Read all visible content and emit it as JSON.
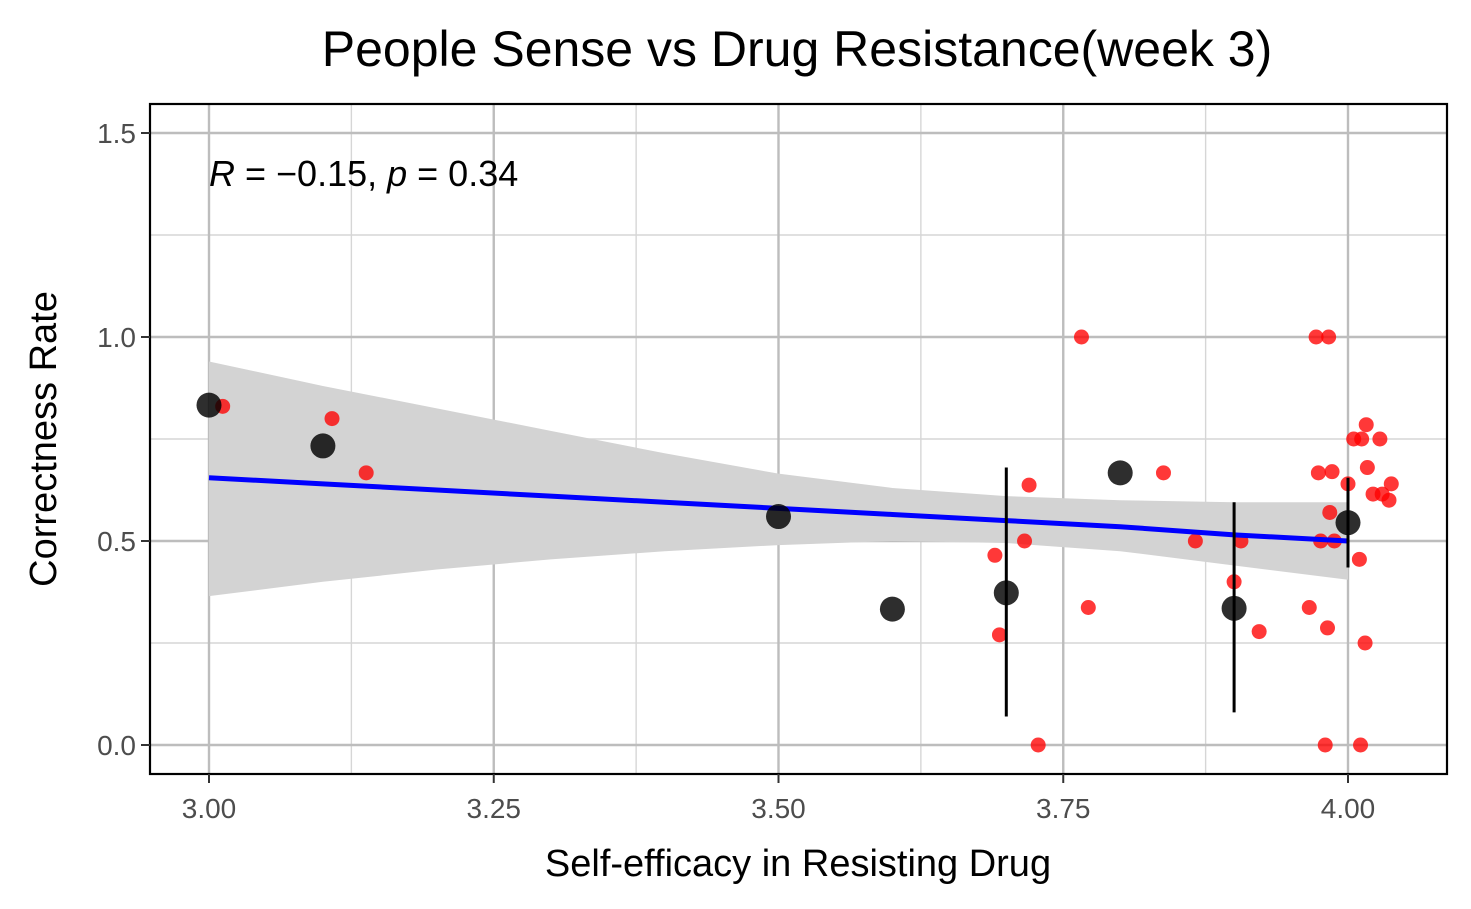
{
  "chart_data": {
    "type": "scatter",
    "title": "People Sense vs Drug Resistance(week 3)",
    "xlabel": "Self-efficacy in Resisting Drug",
    "ylabel": "Correctness Rate",
    "xlim": [
      2.95,
      4.09
    ],
    "ylim": [
      -0.07,
      1.57
    ],
    "x_ticks": [
      {
        "value": 3.0,
        "label": "3.00"
      },
      {
        "value": 3.25,
        "label": "3.25"
      },
      {
        "value": 3.5,
        "label": "3.50"
      },
      {
        "value": 3.75,
        "label": "3.75"
      },
      {
        "value": 4.0,
        "label": "4.00"
      }
    ],
    "y_ticks": [
      {
        "value": 0.0,
        "label": "0.0"
      },
      {
        "value": 0.5,
        "label": "0.5"
      },
      {
        "value": 1.0,
        "label": "1.0"
      },
      {
        "value": 1.5,
        "label": "1.5"
      }
    ],
    "grid": true,
    "annotation": {
      "r_symbol": "R",
      "r_text": " = −0.15, ",
      "p_symbol": "p",
      "p_text": " = 0.34"
    },
    "regression": {
      "x": [
        3.0,
        3.1,
        3.2,
        3.3,
        3.4,
        3.5,
        3.6,
        3.7,
        3.8,
        3.9,
        4.0
      ],
      "y": [
        0.655,
        0.64,
        0.625,
        0.61,
        0.595,
        0.58,
        0.565,
        0.55,
        0.535,
        0.515,
        0.5
      ],
      "lower": [
        0.365,
        0.4,
        0.43,
        0.455,
        0.475,
        0.49,
        0.5,
        0.495,
        0.475,
        0.44,
        0.405
      ],
      "upper": [
        0.94,
        0.88,
        0.825,
        0.77,
        0.715,
        0.665,
        0.63,
        0.61,
        0.6,
        0.595,
        0.595
      ],
      "line_color": "#0000ff",
      "band_color": "#d3d3d3"
    },
    "jitter_points": {
      "color": "#ff0000",
      "points": [
        [
          3.012,
          0.83
        ],
        [
          3.108,
          0.8
        ],
        [
          3.138,
          0.667
        ],
        [
          3.69,
          0.465
        ],
        [
          3.694,
          0.27
        ],
        [
          3.716,
          0.5
        ],
        [
          3.72,
          0.637
        ],
        [
          3.728,
          0.0
        ],
        [
          3.766,
          1.0
        ],
        [
          3.772,
          0.337
        ],
        [
          3.838,
          0.667
        ],
        [
          3.866,
          0.5
        ],
        [
          3.9,
          0.4
        ],
        [
          3.906,
          0.5
        ],
        [
          3.922,
          0.278
        ],
        [
          3.966,
          0.337
        ],
        [
          3.972,
          1.0
        ],
        [
          3.974,
          0.667
        ],
        [
          3.976,
          0.5
        ],
        [
          3.98,
          0.0
        ],
        [
          3.982,
          0.287
        ],
        [
          3.983,
          1.0
        ],
        [
          3.984,
          0.57
        ],
        [
          3.986,
          0.67
        ],
        [
          3.988,
          0.5
        ],
        [
          4.0,
          0.64
        ],
        [
          4.005,
          0.75
        ],
        [
          4.01,
          0.455
        ],
        [
          4.011,
          0.0
        ],
        [
          4.012,
          0.75
        ],
        [
          4.015,
          0.25
        ],
        [
          4.016,
          0.785
        ],
        [
          4.017,
          0.68
        ],
        [
          4.022,
          0.615
        ],
        [
          4.028,
          0.75
        ],
        [
          4.03,
          0.615
        ],
        [
          4.036,
          0.6
        ],
        [
          4.038,
          0.64
        ]
      ]
    },
    "mean_points": {
      "color": "#000000",
      "points": [
        {
          "x": 3.0,
          "y": 0.833
        },
        {
          "x": 3.1,
          "y": 0.733
        },
        {
          "x": 3.5,
          "y": 0.56
        },
        {
          "x": 3.6,
          "y": 0.333
        },
        {
          "x": 3.7,
          "y": 0.373,
          "ymin": 0.07,
          "ymax": 0.68
        },
        {
          "x": 3.8,
          "y": 0.667
        },
        {
          "x": 3.9,
          "y": 0.335,
          "ymin": 0.08,
          "ymax": 0.595
        },
        {
          "x": 4.0,
          "y": 0.545,
          "ymin": 0.435,
          "ymax": 0.655
        }
      ]
    }
  }
}
